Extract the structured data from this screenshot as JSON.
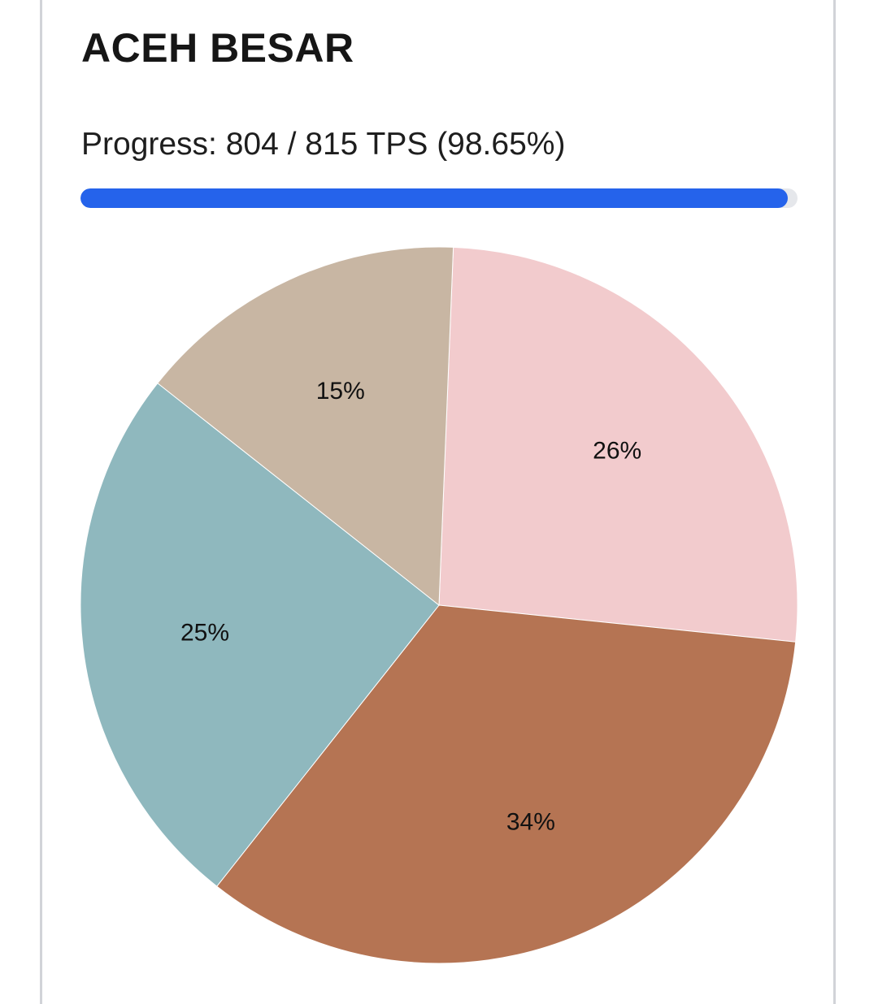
{
  "header": {
    "title": "ACEH BESAR"
  },
  "progress": {
    "text": "Progress: 804 / 815 TPS (98.65%)",
    "completed": 804,
    "total": 815,
    "percent": 98.65,
    "fill_color": "#2563eb",
    "track_color": "#e5e7eb"
  },
  "chart_data": {
    "type": "pie",
    "title": "",
    "legend": "none",
    "slices": [
      {
        "value": 26,
        "label": "26%",
        "color": "#f2cbcd"
      },
      {
        "value": 34,
        "label": "34%",
        "color": "#b57453"
      },
      {
        "value": 25,
        "label": "25%",
        "color": "#8fb8be"
      },
      {
        "value": 15,
        "label": "15%",
        "color": "#c8b6a3"
      }
    ]
  }
}
